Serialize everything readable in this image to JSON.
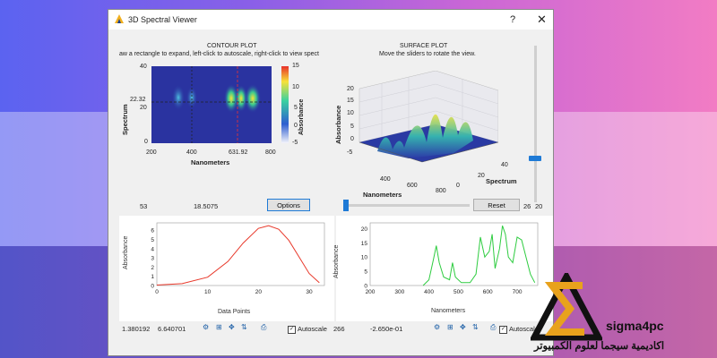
{
  "window": {
    "title": "3D Spectral Viewer",
    "help": "?",
    "close": "✕"
  },
  "contour": {
    "title": "CONTOUR PLOT",
    "subtitle": "aw a rectangle to expand, left-click to autoscale, right-click to view spect",
    "ylabel": "Spectrum",
    "xlabel": "Nanometers",
    "yticks": [
      "40",
      "22.32",
      "20",
      "0"
    ],
    "xticks": [
      "200",
      "400",
      "631.92",
      "800"
    ],
    "colorbar_label": "Absorbance",
    "colorbar_ticks": [
      "15",
      "10",
      "5",
      "0",
      "-5"
    ]
  },
  "surface": {
    "title": "SURFACE PLOT",
    "subtitle": "Move the sliders to rotate the view.",
    "zlabel": "Absorbance",
    "zticks": [
      "20",
      "15",
      "10",
      "5",
      "0",
      "-5"
    ],
    "xticks": [
      "400",
      "600",
      "800"
    ],
    "yticks": [
      "0",
      "20",
      "40"
    ],
    "xlabel": "Nanometers",
    "ylabel": "Spectrum"
  },
  "controls": {
    "left_value": "53",
    "mid_value": "18.5075",
    "options": "Options",
    "reset": "Reset",
    "right_value1": "26",
    "right_value2": "20"
  },
  "lower_left": {
    "ylabel": "Absorbance",
    "xlabel": "Data Points",
    "yticks": [
      "6",
      "5",
      "4",
      "3",
      "2",
      "1",
      "0"
    ],
    "xticks": [
      "0",
      "10",
      "20",
      "30"
    ],
    "coord1": "1.380192",
    "coord2": "6.640701",
    "autoscale": "Autoscale",
    "chart_data": {
      "type": "line",
      "x": [
        0,
        5,
        10,
        14,
        17,
        20,
        22,
        24,
        26,
        28,
        30,
        32
      ],
      "y": [
        0.05,
        0.2,
        0.9,
        2.6,
        4.6,
        6.2,
        6.5,
        6.1,
        4.9,
        3.1,
        1.3,
        0.3
      ],
      "xlim": [
        0,
        33
      ],
      "ylim": [
        0,
        6.8
      ],
      "color": "#e8382a"
    }
  },
  "lower_right": {
    "ylabel": "Absorbance",
    "xlabel": "Nanometers",
    "yticks": [
      "20",
      "15",
      "10",
      "5",
      "0"
    ],
    "xticks": [
      "200",
      "300",
      "400",
      "500",
      "600",
      "700"
    ],
    "coord1": "266",
    "coord2": "-2.650e-01",
    "autoscale": "Autoscale",
    "chart_data": {
      "type": "line",
      "x": [
        380,
        400,
        415,
        425,
        435,
        450,
        470,
        480,
        490,
        510,
        540,
        560,
        575,
        590,
        605,
        615,
        625,
        640,
        650,
        660,
        670,
        685,
        700,
        715,
        730,
        745,
        760
      ],
      "y": [
        0,
        2,
        9,
        14,
        8,
        3,
        2,
        8,
        3,
        1,
        1,
        4,
        17,
        10,
        12,
        18,
        6,
        13,
        21,
        18,
        10,
        8,
        17,
        16,
        10,
        4,
        1
      ],
      "xlim": [
        200,
        770
      ],
      "ylim": [
        0,
        22
      ],
      "color": "#2ecc40"
    }
  },
  "watermark": {
    "brand": "sigma4pc",
    "arabic": "اكاديمية سيجما لعلوم الكمبيوتر"
  }
}
